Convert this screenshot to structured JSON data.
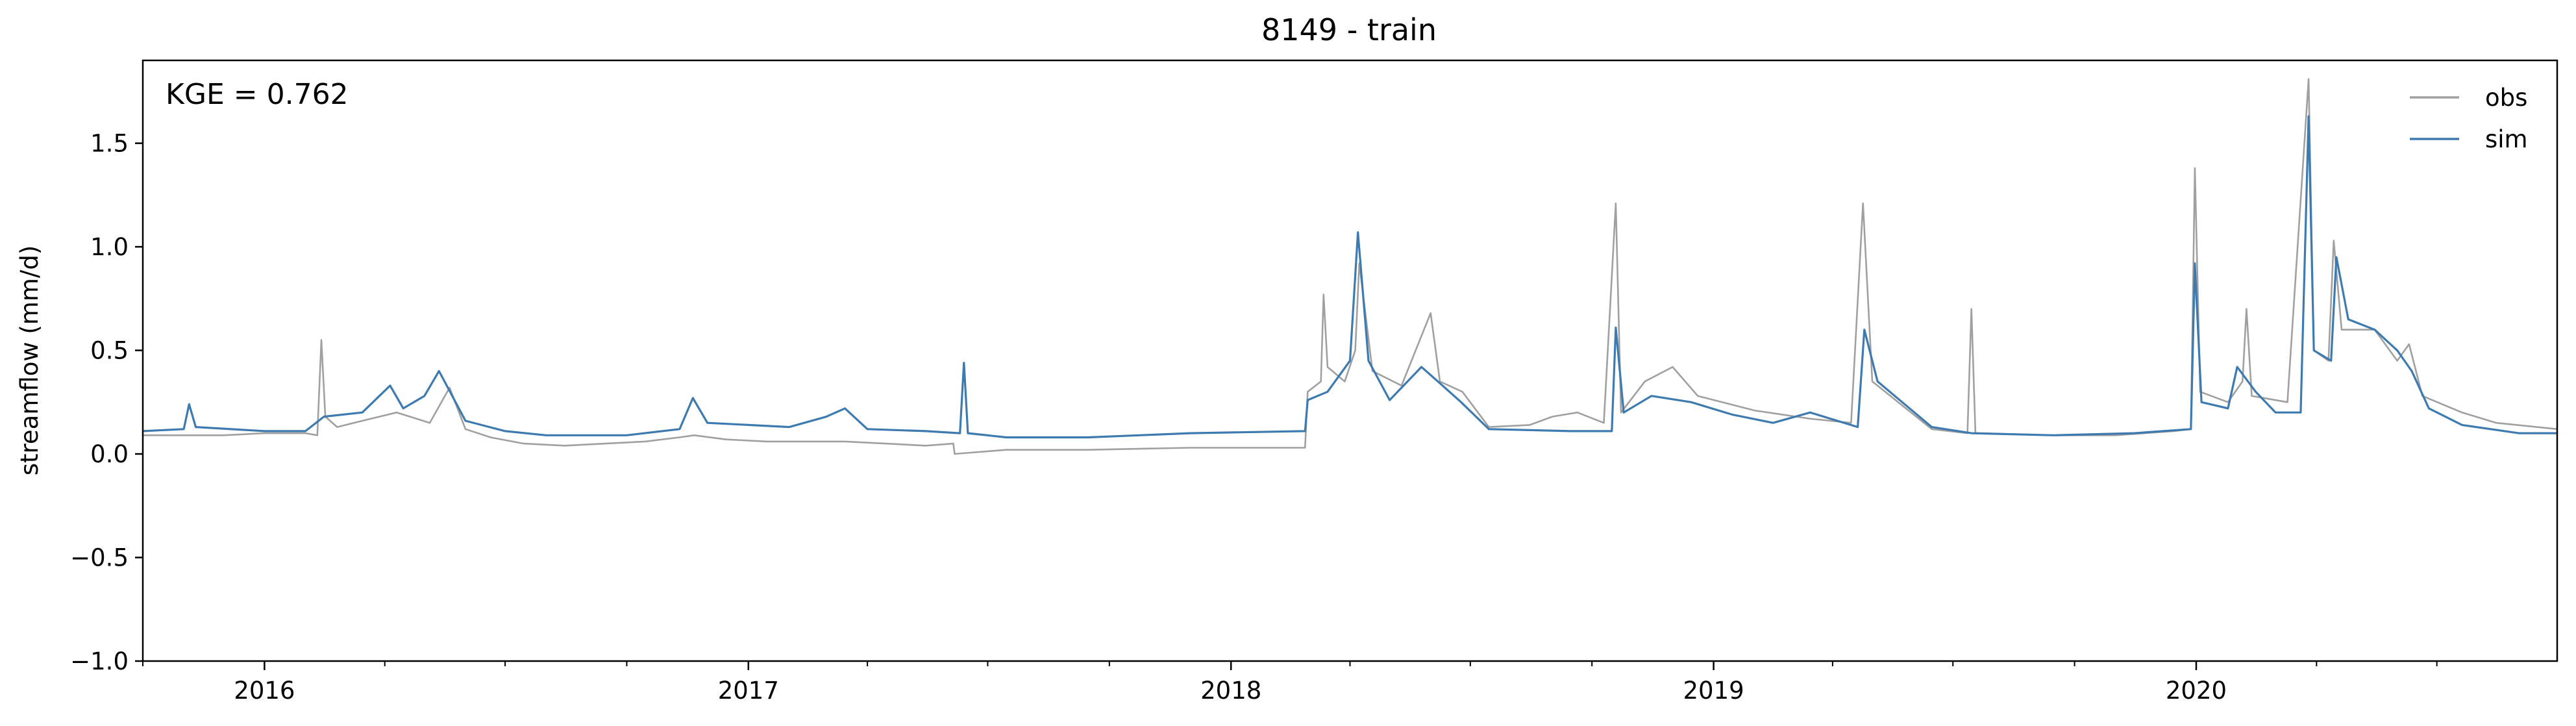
{
  "chart_data": {
    "type": "line",
    "title": "8149 - train",
    "xlabel": "",
    "ylabel": "streamflow (mm/d)",
    "annotation": "KGE = 0.762",
    "xlim": [
      "2015-10-01",
      "2020-09-30"
    ],
    "ylim": [
      -1.0,
      1.9
    ],
    "x_ticks": [
      {
        "date": "2016-01-01",
        "label": "2016"
      },
      {
        "date": "2017-01-01",
        "label": "2017"
      },
      {
        "date": "2018-01-01",
        "label": "2018"
      },
      {
        "date": "2019-01-01",
        "label": "2019"
      },
      {
        "date": "2020-01-01",
        "label": "2020"
      }
    ],
    "y_ticks": [
      {
        "value": -1.0,
        "label": "−1.0"
      },
      {
        "value": -0.5,
        "label": "−0.5"
      },
      {
        "value": 0.0,
        "label": "0.0"
      },
      {
        "value": 0.5,
        "label": "0.5"
      },
      {
        "value": 1.0,
        "label": "1.0"
      },
      {
        "value": 1.5,
        "label": "1.5"
      }
    ],
    "grid": false,
    "legend_position": "top-right",
    "series": [
      {
        "name": "obs",
        "color": "#a0a0a0",
        "points": [
          [
            "2015-10-01",
            0.09
          ],
          [
            "2015-11-01",
            0.09
          ],
          [
            "2015-12-01",
            0.09
          ],
          [
            "2016-01-01",
            0.1
          ],
          [
            "2016-02-01",
            0.1
          ],
          [
            "2016-02-10",
            0.09
          ],
          [
            "2016-02-13",
            0.55
          ],
          [
            "2016-02-16",
            0.18
          ],
          [
            "2016-02-25",
            0.13
          ],
          [
            "2016-03-15",
            0.16
          ],
          [
            "2016-04-10",
            0.2
          ],
          [
            "2016-04-20",
            0.18
          ],
          [
            "2016-05-05",
            0.15
          ],
          [
            "2016-05-20",
            0.32
          ],
          [
            "2016-06-01",
            0.12
          ],
          [
            "2016-06-20",
            0.08
          ],
          [
            "2016-07-15",
            0.05
          ],
          [
            "2016-08-15",
            0.04
          ],
          [
            "2016-09-15",
            0.05
          ],
          [
            "2016-10-15",
            0.06
          ],
          [
            "2016-11-10",
            0.08
          ],
          [
            "2016-11-21",
            0.09
          ],
          [
            "2016-12-15",
            0.07
          ],
          [
            "2017-01-15",
            0.06
          ],
          [
            "2017-03-15",
            0.06
          ],
          [
            "2017-04-15",
            0.05
          ],
          [
            "2017-05-15",
            0.04
          ],
          [
            "2017-06-05",
            0.05
          ],
          [
            "2017-06-06",
            0.0
          ],
          [
            "2017-07-15",
            0.02
          ],
          [
            "2017-09-15",
            0.02
          ],
          [
            "2017-12-01",
            0.03
          ],
          [
            "2018-02-15",
            0.03
          ],
          [
            "2018-02-26",
            0.03
          ],
          [
            "2018-02-28",
            0.3
          ],
          [
            "2018-03-10",
            0.35
          ],
          [
            "2018-03-12",
            0.77
          ],
          [
            "2018-03-15",
            0.42
          ],
          [
            "2018-03-28",
            0.35
          ],
          [
            "2018-04-05",
            0.5
          ],
          [
            "2018-04-08",
            0.92
          ],
          [
            "2018-04-18",
            0.4
          ],
          [
            "2018-05-10",
            0.33
          ],
          [
            "2018-06-01",
            0.68
          ],
          [
            "2018-06-08",
            0.35
          ],
          [
            "2018-06-25",
            0.3
          ],
          [
            "2018-07-15",
            0.13
          ],
          [
            "2018-08-15",
            0.14
          ],
          [
            "2018-09-01",
            0.18
          ],
          [
            "2018-09-20",
            0.2
          ],
          [
            "2018-10-10",
            0.15
          ],
          [
            "2018-10-19",
            1.21
          ],
          [
            "2018-10-23",
            0.2
          ],
          [
            "2018-11-10",
            0.35
          ],
          [
            "2018-12-01",
            0.42
          ],
          [
            "2018-12-20",
            0.28
          ],
          [
            "2019-02-01",
            0.21
          ],
          [
            "2019-03-15",
            0.17
          ],
          [
            "2019-04-15",
            0.15
          ],
          [
            "2019-04-24",
            1.21
          ],
          [
            "2019-05-01",
            0.35
          ],
          [
            "2019-06-15",
            0.12
          ],
          [
            "2019-07-12",
            0.1
          ],
          [
            "2019-07-15",
            0.7
          ],
          [
            "2019-07-18",
            0.1
          ],
          [
            "2019-09-15",
            0.09
          ],
          [
            "2019-11-01",
            0.09
          ],
          [
            "2019-12-15",
            0.11
          ],
          [
            "2019-12-28",
            0.12
          ],
          [
            "2019-12-31",
            1.38
          ],
          [
            "2020-01-04",
            0.3
          ],
          [
            "2020-01-25",
            0.25
          ],
          [
            "2020-02-05",
            0.35
          ],
          [
            "2020-02-08",
            0.7
          ],
          [
            "2020-02-12",
            0.28
          ],
          [
            "2020-03-10",
            0.25
          ],
          [
            "2020-03-26",
            1.81
          ],
          [
            "2020-03-30",
            0.5
          ],
          [
            "2020-04-10",
            0.45
          ],
          [
            "2020-04-14",
            1.03
          ],
          [
            "2020-04-20",
            0.6
          ],
          [
            "2020-05-15",
            0.6
          ],
          [
            "2020-06-01",
            0.45
          ],
          [
            "2020-06-10",
            0.53
          ],
          [
            "2020-06-20",
            0.28
          ],
          [
            "2020-07-20",
            0.2
          ],
          [
            "2020-08-15",
            0.15
          ],
          [
            "2020-09-30",
            0.12
          ]
        ]
      },
      {
        "name": "sim",
        "color": "#3d7ab0",
        "points": [
          [
            "2015-10-01",
            0.11
          ],
          [
            "2015-11-01",
            0.12
          ],
          [
            "2015-11-05",
            0.24
          ],
          [
            "2015-11-10",
            0.13
          ],
          [
            "2016-01-01",
            0.11
          ],
          [
            "2016-02-01",
            0.11
          ],
          [
            "2016-02-15",
            0.18
          ],
          [
            "2016-03-15",
            0.2
          ],
          [
            "2016-04-05",
            0.33
          ],
          [
            "2016-04-15",
            0.22
          ],
          [
            "2016-05-01",
            0.28
          ],
          [
            "2016-05-12",
            0.4
          ],
          [
            "2016-06-01",
            0.16
          ],
          [
            "2016-07-01",
            0.11
          ],
          [
            "2016-08-01",
            0.09
          ],
          [
            "2016-10-01",
            0.09
          ],
          [
            "2016-11-10",
            0.12
          ],
          [
            "2016-11-20",
            0.27
          ],
          [
            "2016-12-01",
            0.15
          ],
          [
            "2017-02-01",
            0.13
          ],
          [
            "2017-03-01",
            0.18
          ],
          [
            "2017-03-15",
            0.22
          ],
          [
            "2017-04-01",
            0.12
          ],
          [
            "2017-05-15",
            0.11
          ],
          [
            "2017-06-10",
            0.1
          ],
          [
            "2017-06-13",
            0.44
          ],
          [
            "2017-06-16",
            0.1
          ],
          [
            "2017-07-15",
            0.08
          ],
          [
            "2017-09-15",
            0.08
          ],
          [
            "2017-12-01",
            0.1
          ],
          [
            "2018-02-26",
            0.11
          ],
          [
            "2018-02-28",
            0.26
          ],
          [
            "2018-03-15",
            0.3
          ],
          [
            "2018-04-01",
            0.45
          ],
          [
            "2018-04-07",
            1.07
          ],
          [
            "2018-04-15",
            0.45
          ],
          [
            "2018-05-01",
            0.26
          ],
          [
            "2018-05-25",
            0.42
          ],
          [
            "2018-06-10",
            0.33
          ],
          [
            "2018-06-24",
            0.25
          ],
          [
            "2018-07-15",
            0.12
          ],
          [
            "2018-09-15",
            0.11
          ],
          [
            "2018-10-16",
            0.11
          ],
          [
            "2018-10-19",
            0.61
          ],
          [
            "2018-10-25",
            0.2
          ],
          [
            "2018-11-15",
            0.28
          ],
          [
            "2018-12-15",
            0.25
          ],
          [
            "2019-01-15",
            0.19
          ],
          [
            "2019-02-15",
            0.15
          ],
          [
            "2019-03-15",
            0.2
          ],
          [
            "2019-04-20",
            0.13
          ],
          [
            "2019-04-25",
            0.6
          ],
          [
            "2019-05-05",
            0.35
          ],
          [
            "2019-06-15",
            0.13
          ],
          [
            "2019-07-15",
            0.1
          ],
          [
            "2019-09-15",
            0.09
          ],
          [
            "2019-11-15",
            0.1
          ],
          [
            "2019-12-28",
            0.12
          ],
          [
            "2019-12-31",
            0.92
          ],
          [
            "2020-01-05",
            0.25
          ],
          [
            "2020-01-25",
            0.22
          ],
          [
            "2020-02-01",
            0.42
          ],
          [
            "2020-02-15",
            0.3
          ],
          [
            "2020-03-01",
            0.2
          ],
          [
            "2020-03-20",
            0.2
          ],
          [
            "2020-03-26",
            1.63
          ],
          [
            "2020-03-30",
            0.5
          ],
          [
            "2020-04-12",
            0.45
          ],
          [
            "2020-04-16",
            0.95
          ],
          [
            "2020-04-25",
            0.65
          ],
          [
            "2020-05-15",
            0.6
          ],
          [
            "2020-06-01",
            0.5
          ],
          [
            "2020-06-12",
            0.4
          ],
          [
            "2020-06-25",
            0.22
          ],
          [
            "2020-07-20",
            0.14
          ],
          [
            "2020-09-01",
            0.1
          ],
          [
            "2020-09-30",
            0.1
          ]
        ]
      }
    ]
  }
}
